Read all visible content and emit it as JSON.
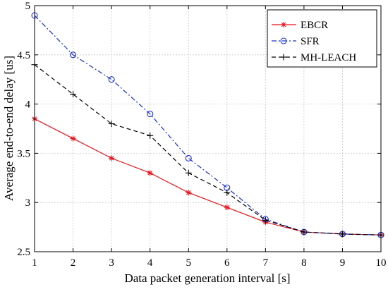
{
  "chart_data": {
    "type": "line",
    "x": [
      1,
      2,
      3,
      4,
      5,
      6,
      7,
      8,
      9,
      10
    ],
    "xlabel": "Data packet generation interval [s]",
    "ylabel": "Average end-to-end delay [us]",
    "xlim": [
      1,
      10
    ],
    "ylim": [
      2.5,
      5
    ],
    "xticks": [
      "1",
      "2",
      "3",
      "4",
      "5",
      "6",
      "7",
      "8",
      "9",
      "10"
    ],
    "yticks": [
      "2.5",
      "3",
      "3.5",
      "4",
      "4.5",
      "5"
    ],
    "ytick_values": [
      2.5,
      3,
      3.5,
      4,
      4.5,
      5
    ],
    "grid": true,
    "legend_position": "top-right",
    "series": [
      {
        "name": "EBCR",
        "color": "#e8141c",
        "line": "solid",
        "marker": "asterisk",
        "values": [
          3.85,
          3.65,
          3.45,
          3.3,
          3.1,
          2.95,
          2.8,
          2.7,
          2.68,
          2.67
        ]
      },
      {
        "name": "SFR",
        "color": "#1a2fd6",
        "line": "dashdot",
        "marker": "circle",
        "values": [
          4.9,
          4.5,
          4.25,
          3.9,
          3.45,
          3.15,
          2.83,
          2.7,
          2.68,
          2.67
        ]
      },
      {
        "name": "MH-LEACH",
        "color": "#000000",
        "line": "dashed",
        "marker": "plus",
        "values": [
          4.4,
          4.1,
          3.8,
          3.68,
          3.3,
          3.1,
          2.82,
          2.7,
          2.68,
          2.67
        ]
      }
    ]
  }
}
